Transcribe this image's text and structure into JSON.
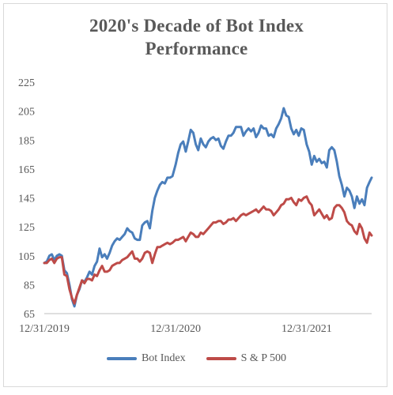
{
  "chart_data": {
    "type": "line",
    "title": "2020's Decade of Bot Index Performance",
    "title_lines": [
      "2020's Decade of Bot Index",
      "Performance"
    ],
    "xlabel": "",
    "ylabel": "",
    "ylim": [
      65,
      225
    ],
    "y_ticks": [
      65,
      85,
      105,
      125,
      145,
      165,
      185,
      205,
      225
    ],
    "x_range": [
      "2019-12-31",
      "2022-06-30"
    ],
    "x_ticks": [
      {
        "date": "2019-12-31",
        "label": "12/31/2019"
      },
      {
        "date": "2020-12-31",
        "label": "12/31/2020"
      },
      {
        "date": "2021-12-31",
        "label": "12/31/2021"
      }
    ],
    "grid": false,
    "legend_position": "bottom",
    "series": [
      {
        "name": "Bot Index",
        "color": "#4a7ebb",
        "points": [
          [
            "2019-12-31",
            100
          ],
          [
            "2020-01-07",
            101
          ],
          [
            "2020-01-14",
            105
          ],
          [
            "2020-01-21",
            106
          ],
          [
            "2020-01-28",
            102
          ],
          [
            "2020-02-04",
            105
          ],
          [
            "2020-02-11",
            106
          ],
          [
            "2020-02-18",
            105
          ],
          [
            "2020-02-25",
            95
          ],
          [
            "2020-03-03",
            93
          ],
          [
            "2020-03-10",
            85
          ],
          [
            "2020-03-17",
            75
          ],
          [
            "2020-03-24",
            70
          ],
          [
            "2020-03-31",
            78
          ],
          [
            "2020-04-07",
            82
          ],
          [
            "2020-04-14",
            88
          ],
          [
            "2020-04-21",
            87
          ],
          [
            "2020-04-28",
            90
          ],
          [
            "2020-05-05",
            94
          ],
          [
            "2020-05-12",
            92
          ],
          [
            "2020-05-19",
            98
          ],
          [
            "2020-05-26",
            101
          ],
          [
            "2020-06-02",
            110
          ],
          [
            "2020-06-09",
            104
          ],
          [
            "2020-06-16",
            106
          ],
          [
            "2020-06-23",
            103
          ],
          [
            "2020-06-30",
            107
          ],
          [
            "2020-07-07",
            112
          ],
          [
            "2020-07-14",
            115
          ],
          [
            "2020-07-21",
            117
          ],
          [
            "2020-07-28",
            116
          ],
          [
            "2020-08-04",
            118
          ],
          [
            "2020-08-11",
            120
          ],
          [
            "2020-08-18",
            124
          ],
          [
            "2020-08-25",
            122
          ],
          [
            "2020-09-01",
            121
          ],
          [
            "2020-09-08",
            117
          ],
          [
            "2020-09-15",
            116
          ],
          [
            "2020-09-22",
            116
          ],
          [
            "2020-09-29",
            126
          ],
          [
            "2020-10-06",
            128
          ],
          [
            "2020-10-13",
            129
          ],
          [
            "2020-10-20",
            124
          ],
          [
            "2020-10-27",
            136
          ],
          [
            "2020-11-03",
            145
          ],
          [
            "2020-11-10",
            150
          ],
          [
            "2020-11-17",
            154
          ],
          [
            "2020-11-24",
            156
          ],
          [
            "2020-12-01",
            155
          ],
          [
            "2020-12-08",
            159
          ],
          [
            "2020-12-15",
            159
          ],
          [
            "2020-12-22",
            160
          ],
          [
            "2020-12-31",
            168
          ],
          [
            "2021-01-07",
            176
          ],
          [
            "2021-01-14",
            182
          ],
          [
            "2021-01-21",
            184
          ],
          [
            "2021-01-28",
            177
          ],
          [
            "2021-02-04",
            184
          ],
          [
            "2021-02-11",
            192
          ],
          [
            "2021-02-18",
            190
          ],
          [
            "2021-02-25",
            182
          ],
          [
            "2021-03-04",
            178
          ],
          [
            "2021-03-11",
            186
          ],
          [
            "2021-03-18",
            182
          ],
          [
            "2021-03-25",
            180
          ],
          [
            "2021-04-01",
            184
          ],
          [
            "2021-04-08",
            186
          ],
          [
            "2021-04-15",
            187
          ],
          [
            "2021-04-22",
            185
          ],
          [
            "2021-04-29",
            186
          ],
          [
            "2021-05-06",
            181
          ],
          [
            "2021-05-13",
            179
          ],
          [
            "2021-05-20",
            184
          ],
          [
            "2021-05-27",
            188
          ],
          [
            "2021-06-03",
            188
          ],
          [
            "2021-06-10",
            190
          ],
          [
            "2021-06-17",
            194
          ],
          [
            "2021-06-24",
            194
          ],
          [
            "2021-07-01",
            194
          ],
          [
            "2021-07-08",
            188
          ],
          [
            "2021-07-15",
            191
          ],
          [
            "2021-07-22",
            193
          ],
          [
            "2021-07-29",
            191
          ],
          [
            "2021-08-05",
            193
          ],
          [
            "2021-08-12",
            187
          ],
          [
            "2021-08-19",
            190
          ],
          [
            "2021-08-26",
            195
          ],
          [
            "2021-09-02",
            193
          ],
          [
            "2021-09-09",
            193
          ],
          [
            "2021-09-16",
            188
          ],
          [
            "2021-09-23",
            189
          ],
          [
            "2021-09-30",
            187
          ],
          [
            "2021-10-07",
            193
          ],
          [
            "2021-10-14",
            196
          ],
          [
            "2021-10-21",
            200
          ],
          [
            "2021-10-28",
            207
          ],
          [
            "2021-11-04",
            202
          ],
          [
            "2021-11-11",
            201
          ],
          [
            "2021-11-18",
            193
          ],
          [
            "2021-11-25",
            189
          ],
          [
            "2021-12-02",
            192
          ],
          [
            "2021-12-09",
            188
          ],
          [
            "2021-12-16",
            193
          ],
          [
            "2021-12-23",
            192
          ],
          [
            "2021-12-31",
            182
          ],
          [
            "2022-01-07",
            177
          ],
          [
            "2022-01-14",
            168
          ],
          [
            "2022-01-21",
            174
          ],
          [
            "2022-01-28",
            170
          ],
          [
            "2022-02-04",
            172
          ],
          [
            "2022-02-11",
            169
          ],
          [
            "2022-02-18",
            170
          ],
          [
            "2022-02-25",
            166
          ],
          [
            "2022-03-04",
            178
          ],
          [
            "2022-03-11",
            180
          ],
          [
            "2022-03-18",
            178
          ],
          [
            "2022-03-25",
            170
          ],
          [
            "2022-04-01",
            160
          ],
          [
            "2022-04-08",
            154
          ],
          [
            "2022-04-15",
            146
          ],
          [
            "2022-04-22",
            152
          ],
          [
            "2022-04-29",
            150
          ],
          [
            "2022-05-06",
            146
          ],
          [
            "2022-05-13",
            138
          ],
          [
            "2022-05-20",
            146
          ],
          [
            "2022-05-27",
            141
          ],
          [
            "2022-06-03",
            144
          ],
          [
            "2022-06-10",
            140
          ],
          [
            "2022-06-17",
            152
          ],
          [
            "2022-06-24",
            156
          ],
          [
            "2022-06-30",
            159
          ]
        ]
      },
      {
        "name": "S & P 500",
        "color": "#be4b48",
        "points": [
          [
            "2019-12-31",
            100
          ],
          [
            "2020-01-07",
            100
          ],
          [
            "2020-01-14",
            102
          ],
          [
            "2020-01-21",
            103
          ],
          [
            "2020-01-28",
            100
          ],
          [
            "2020-02-04",
            103
          ],
          [
            "2020-02-11",
            104
          ],
          [
            "2020-02-18",
            104
          ],
          [
            "2020-02-25",
            92
          ],
          [
            "2020-03-03",
            91
          ],
          [
            "2020-03-10",
            82
          ],
          [
            "2020-03-17",
            76
          ],
          [
            "2020-03-24",
            72
          ],
          [
            "2020-03-31",
            78
          ],
          [
            "2020-04-07",
            83
          ],
          [
            "2020-04-14",
            88
          ],
          [
            "2020-04-21",
            86
          ],
          [
            "2020-04-28",
            89
          ],
          [
            "2020-05-05",
            89
          ],
          [
            "2020-05-12",
            88
          ],
          [
            "2020-05-19",
            92
          ],
          [
            "2020-05-26",
            91
          ],
          [
            "2020-06-02",
            95
          ],
          [
            "2020-06-09",
            98
          ],
          [
            "2020-06-16",
            94
          ],
          [
            "2020-06-23",
            94
          ],
          [
            "2020-06-30",
            95
          ],
          [
            "2020-07-07",
            98
          ],
          [
            "2020-07-14",
            99
          ],
          [
            "2020-07-21",
            100
          ],
          [
            "2020-07-28",
            100
          ],
          [
            "2020-08-04",
            102
          ],
          [
            "2020-08-11",
            103
          ],
          [
            "2020-08-18",
            104
          ],
          [
            "2020-08-25",
            106
          ],
          [
            "2020-09-01",
            108
          ],
          [
            "2020-09-08",
            103
          ],
          [
            "2020-09-15",
            103
          ],
          [
            "2020-09-22",
            101
          ],
          [
            "2020-09-29",
            103
          ],
          [
            "2020-10-06",
            107
          ],
          [
            "2020-10-13",
            108
          ],
          [
            "2020-10-20",
            107
          ],
          [
            "2020-10-27",
            100
          ],
          [
            "2020-11-03",
            106
          ],
          [
            "2020-11-10",
            111
          ],
          [
            "2020-11-17",
            111
          ],
          [
            "2020-11-24",
            112
          ],
          [
            "2020-12-01",
            113
          ],
          [
            "2020-12-08",
            114
          ],
          [
            "2020-12-15",
            113
          ],
          [
            "2020-12-22",
            114
          ],
          [
            "2020-12-31",
            116
          ],
          [
            "2021-01-07",
            116
          ],
          [
            "2021-01-14",
            117
          ],
          [
            "2021-01-21",
            118
          ],
          [
            "2021-01-28",
            115
          ],
          [
            "2021-02-04",
            118
          ],
          [
            "2021-02-11",
            121
          ],
          [
            "2021-02-18",
            120
          ],
          [
            "2021-02-25",
            118
          ],
          [
            "2021-03-04",
            118
          ],
          [
            "2021-03-11",
            121
          ],
          [
            "2021-03-18",
            120
          ],
          [
            "2021-03-25",
            122
          ],
          [
            "2021-04-01",
            124
          ],
          [
            "2021-04-08",
            126
          ],
          [
            "2021-04-15",
            128
          ],
          [
            "2021-04-22",
            128
          ],
          [
            "2021-04-29",
            129
          ],
          [
            "2021-05-06",
            129
          ],
          [
            "2021-05-13",
            127
          ],
          [
            "2021-05-20",
            128
          ],
          [
            "2021-05-27",
            130
          ],
          [
            "2021-06-03",
            130
          ],
          [
            "2021-06-10",
            131
          ],
          [
            "2021-06-17",
            129
          ],
          [
            "2021-06-24",
            131
          ],
          [
            "2021-07-01",
            133
          ],
          [
            "2021-07-08",
            134
          ],
          [
            "2021-07-15",
            133
          ],
          [
            "2021-07-22",
            134
          ],
          [
            "2021-07-29",
            135
          ],
          [
            "2021-08-05",
            136
          ],
          [
            "2021-08-12",
            137
          ],
          [
            "2021-08-19",
            135
          ],
          [
            "2021-08-26",
            137
          ],
          [
            "2021-09-02",
            139
          ],
          [
            "2021-09-09",
            137
          ],
          [
            "2021-09-16",
            137
          ],
          [
            "2021-09-23",
            136
          ],
          [
            "2021-09-30",
            133
          ],
          [
            "2021-10-07",
            135
          ],
          [
            "2021-10-14",
            137
          ],
          [
            "2021-10-21",
            140
          ],
          [
            "2021-10-28",
            141
          ],
          [
            "2021-11-04",
            144
          ],
          [
            "2021-11-11",
            144
          ],
          [
            "2021-11-18",
            145
          ],
          [
            "2021-11-25",
            142
          ],
          [
            "2021-12-02",
            140
          ],
          [
            "2021-12-09",
            144
          ],
          [
            "2021-12-16",
            143
          ],
          [
            "2021-12-23",
            145
          ],
          [
            "2021-12-31",
            146
          ],
          [
            "2022-01-07",
            142
          ],
          [
            "2022-01-14",
            140
          ],
          [
            "2022-01-21",
            133
          ],
          [
            "2022-01-28",
            135
          ],
          [
            "2022-02-04",
            137
          ],
          [
            "2022-02-11",
            134
          ],
          [
            "2022-02-18",
            131
          ],
          [
            "2022-02-25",
            133
          ],
          [
            "2022-03-04",
            130
          ],
          [
            "2022-03-11",
            131
          ],
          [
            "2022-03-18",
            138
          ],
          [
            "2022-03-25",
            140
          ],
          [
            "2022-04-01",
            140
          ],
          [
            "2022-04-08",
            138
          ],
          [
            "2022-04-15",
            135
          ],
          [
            "2022-04-22",
            129
          ],
          [
            "2022-04-29",
            127
          ],
          [
            "2022-05-06",
            126
          ],
          [
            "2022-05-13",
            122
          ],
          [
            "2022-05-20",
            120
          ],
          [
            "2022-05-27",
            127
          ],
          [
            "2022-06-03",
            124
          ],
          [
            "2022-06-10",
            117
          ],
          [
            "2022-06-17",
            114
          ],
          [
            "2022-06-24",
            121
          ],
          [
            "2022-06-30",
            119
          ]
        ]
      }
    ]
  }
}
